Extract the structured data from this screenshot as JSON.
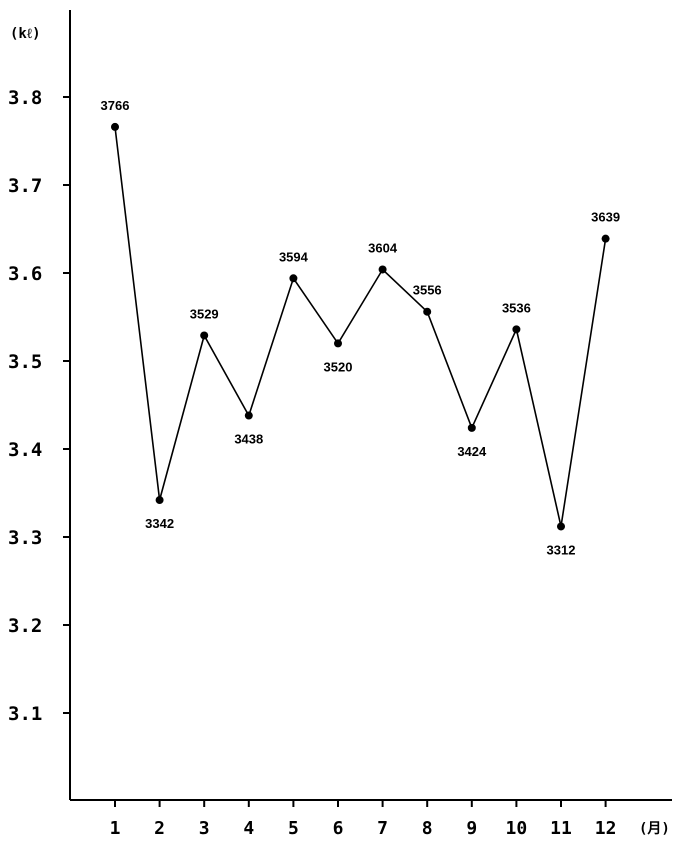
{
  "chart_data": {
    "type": "line",
    "title": "",
    "ylabel": "(kℓ)",
    "xlabel": "(月)",
    "ylim": [
      3.0,
      3.8
    ],
    "yticks": [
      "3.8",
      "3.7",
      "3.6",
      "3.5",
      "3.4",
      "3.3",
      "3.2",
      "3.1"
    ],
    "ytick_values": [
      3.8,
      3.7,
      3.6,
      3.5,
      3.4,
      3.3,
      3.2,
      3.1
    ],
    "categories": [
      "1",
      "2",
      "3",
      "4",
      "5",
      "6",
      "7",
      "8",
      "9",
      "10",
      "11",
      "12"
    ],
    "values": [
      3.766,
      3.342,
      3.529,
      3.438,
      3.594,
      3.52,
      3.604,
      3.556,
      3.424,
      3.536,
      3.312,
      3.639
    ],
    "labels": [
      "3766",
      "3342",
      "3529",
      "3438",
      "3594",
      "3520",
      "3604",
      "3556",
      "3424",
      "3536",
      "3312",
      "3639"
    ],
    "label_positions": [
      "above",
      "below",
      "above",
      "below",
      "above",
      "below",
      "above",
      "above",
      "below",
      "above",
      "below",
      "above"
    ],
    "grid": false,
    "legend": "none"
  }
}
